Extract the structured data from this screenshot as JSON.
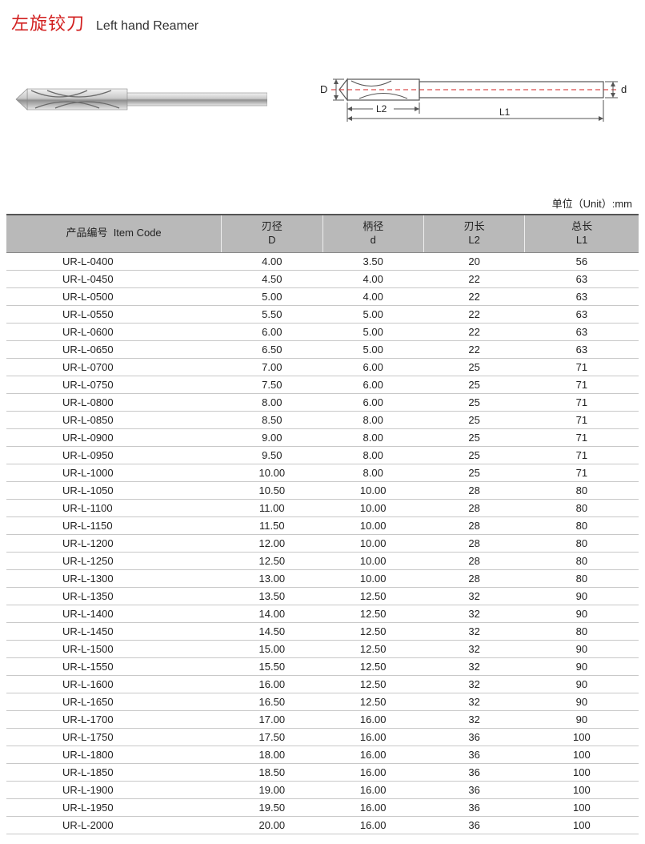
{
  "title": {
    "cn": "左旋铰刀",
    "en": "Left hand Reamer"
  },
  "unit_label": "单位（Unit）:mm",
  "diagram": {
    "D_label": "D",
    "d_label": "d",
    "L1_label": "L1",
    "L2_label": "L2",
    "stroke": "#666666",
    "dash_stroke": "#d22020"
  },
  "table": {
    "headers": {
      "code": {
        "cn": "产品编号",
        "en": "Item Code"
      },
      "D": {
        "cn": "刃径",
        "en": "D"
      },
      "d": {
        "cn": "柄径",
        "en": "d"
      },
      "L2": {
        "cn": "刃长",
        "en": "L2"
      },
      "L1": {
        "cn": "总长",
        "en": "L1"
      }
    },
    "rows": [
      {
        "code": "UR-L-0400",
        "D": "4.00",
        "d": "3.50",
        "L2": "20",
        "L1": "56"
      },
      {
        "code": "UR-L-0450",
        "D": "4.50",
        "d": "4.00",
        "L2": "22",
        "L1": "63"
      },
      {
        "code": "UR-L-0500",
        "D": "5.00",
        "d": "4.00",
        "L2": "22",
        "L1": "63"
      },
      {
        "code": "UR-L-0550",
        "D": "5.50",
        "d": "5.00",
        "L2": "22",
        "L1": "63"
      },
      {
        "code": "UR-L-0600",
        "D": "6.00",
        "d": "5.00",
        "L2": "22",
        "L1": "63"
      },
      {
        "code": "UR-L-0650",
        "D": "6.50",
        "d": "5.00",
        "L2": "22",
        "L1": "63"
      },
      {
        "code": "UR-L-0700",
        "D": "7.00",
        "d": "6.00",
        "L2": "25",
        "L1": "71"
      },
      {
        "code": "UR-L-0750",
        "D": "7.50",
        "d": "6.00",
        "L2": "25",
        "L1": "71"
      },
      {
        "code": "UR-L-0800",
        "D": "8.00",
        "d": "6.00",
        "L2": "25",
        "L1": "71"
      },
      {
        "code": "UR-L-0850",
        "D": "8.50",
        "d": "8.00",
        "L2": "25",
        "L1": "71"
      },
      {
        "code": "UR-L-0900",
        "D": "9.00",
        "d": "8.00",
        "L2": "25",
        "L1": "71"
      },
      {
        "code": "UR-L-0950",
        "D": "9.50",
        "d": "8.00",
        "L2": "25",
        "L1": "71"
      },
      {
        "code": "UR-L-1000",
        "D": "10.00",
        "d": "8.00",
        "L2": "25",
        "L1": "71"
      },
      {
        "code": "UR-L-1050",
        "D": "10.50",
        "d": "10.00",
        "L2": "28",
        "L1": "80"
      },
      {
        "code": "UR-L-1100",
        "D": "11.00",
        "d": "10.00",
        "L2": "28",
        "L1": "80"
      },
      {
        "code": "UR-L-1150",
        "D": "11.50",
        "d": "10.00",
        "L2": "28",
        "L1": "80"
      },
      {
        "code": "UR-L-1200",
        "D": "12.00",
        "d": "10.00",
        "L2": "28",
        "L1": "80"
      },
      {
        "code": "UR-L-1250",
        "D": "12.50",
        "d": "10.00",
        "L2": "28",
        "L1": "80"
      },
      {
        "code": "UR-L-1300",
        "D": "13.00",
        "d": "10.00",
        "L2": "28",
        "L1": "80"
      },
      {
        "code": "UR-L-1350",
        "D": "13.50",
        "d": "12.50",
        "L2": "32",
        "L1": "90"
      },
      {
        "code": "UR-L-1400",
        "D": "14.00",
        "d": "12.50",
        "L2": "32",
        "L1": "90"
      },
      {
        "code": "UR-L-1450",
        "D": "14.50",
        "d": "12.50",
        "L2": "32",
        "L1": "80"
      },
      {
        "code": "UR-L-1500",
        "D": "15.00",
        "d": "12.50",
        "L2": "32",
        "L1": "90"
      },
      {
        "code": "UR-L-1550",
        "D": "15.50",
        "d": "12.50",
        "L2": "32",
        "L1": "90"
      },
      {
        "code": "UR-L-1600",
        "D": "16.00",
        "d": "12.50",
        "L2": "32",
        "L1": "90"
      },
      {
        "code": "UR-L-1650",
        "D": "16.50",
        "d": "12.50",
        "L2": "32",
        "L1": "90"
      },
      {
        "code": "UR-L-1700",
        "D": "17.00",
        "d": "16.00",
        "L2": "32",
        "L1": "90"
      },
      {
        "code": "UR-L-1750",
        "D": "17.50",
        "d": "16.00",
        "L2": "36",
        "L1": "100"
      },
      {
        "code": "UR-L-1800",
        "D": "18.00",
        "d": "16.00",
        "L2": "36",
        "L1": "100"
      },
      {
        "code": "UR-L-1850",
        "D": "18.50",
        "d": "16.00",
        "L2": "36",
        "L1": "100"
      },
      {
        "code": "UR-L-1900",
        "D": "19.00",
        "d": "16.00",
        "L2": "36",
        "L1": "100"
      },
      {
        "code": "UR-L-1950",
        "D": "19.50",
        "d": "16.00",
        "L2": "36",
        "L1": "100"
      },
      {
        "code": "UR-L-2000",
        "D": "20.00",
        "d": "16.00",
        "L2": "36",
        "L1": "100"
      }
    ]
  },
  "colors": {
    "header_bg": "#b9b9b9",
    "row_border": "#c8c8c8",
    "title_red": "#d22020",
    "text": "#222222"
  }
}
